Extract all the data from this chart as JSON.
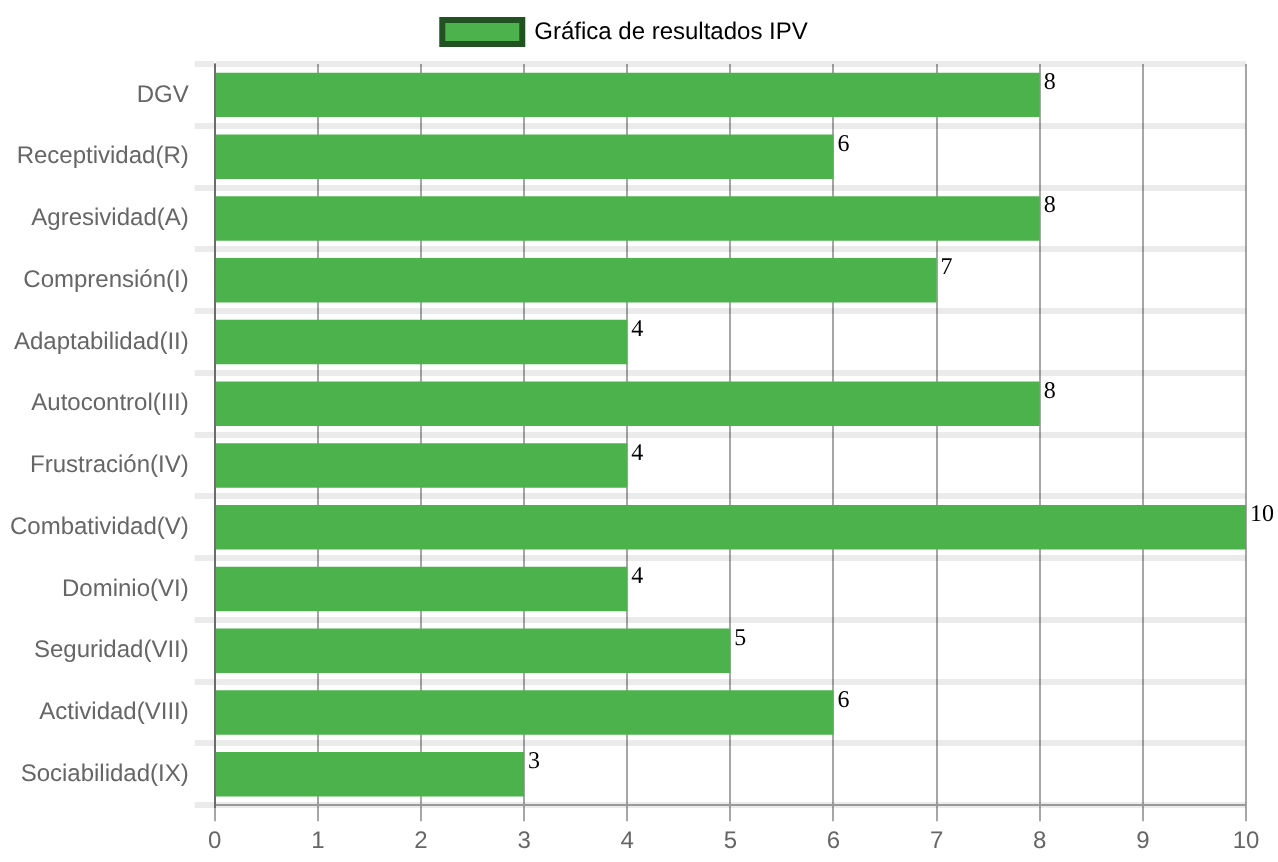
{
  "chart_data": {
    "type": "bar",
    "orientation": "horizontal",
    "categories": [
      "DGV",
      "Receptividad(R)",
      "Agresividad(A)",
      "Comprensión(I)",
      "Adaptabilidad(II)",
      "Autocontrol(III)",
      "Frustración(IV)",
      "Combatividad(V)",
      "Dominio(VI)",
      "Seguridad(VII)",
      "Actividad(VIII)",
      "Sociabilidad(IX)"
    ],
    "series": [
      {
        "name": "Gráfica de resultados IPV",
        "color": "#4cb34c",
        "values": [
          8,
          6,
          8,
          7,
          4,
          8,
          4,
          10,
          4,
          5,
          6,
          3
        ]
      }
    ],
    "xlim": [
      0,
      10
    ],
    "xticks": [
      0,
      1,
      2,
      3,
      4,
      5,
      6,
      7,
      8,
      9,
      10
    ],
    "grid": true,
    "legend": "top",
    "data_labels": true
  }
}
